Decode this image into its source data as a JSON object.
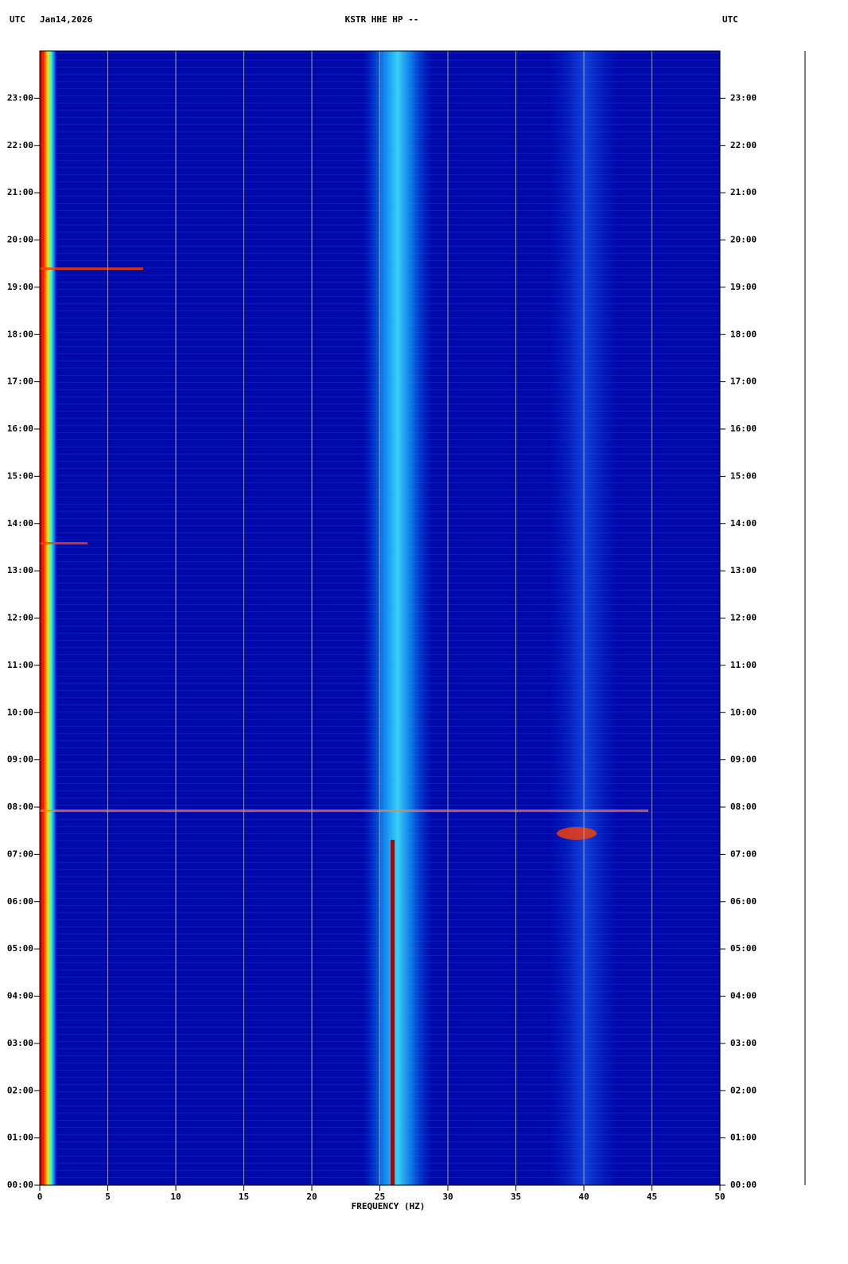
{
  "chart_data": {
    "type": "spectrogram",
    "title": "KSTR HHE HP --",
    "left_header": "UTC",
    "date": "Jan14,2026",
    "right_header": "UTC",
    "x_label": "FREQUENCY (HZ)",
    "xlim": [
      0,
      50
    ],
    "xticks": [
      0,
      5,
      10,
      15,
      20,
      25,
      30,
      35,
      40,
      45,
      50
    ],
    "ylim": [
      0,
      24
    ],
    "yticks": [
      {
        "value": 0,
        "label": "00:00"
      },
      {
        "value": 1,
        "label": "01:00"
      },
      {
        "value": 2,
        "label": "02:00"
      },
      {
        "value": 3,
        "label": "03:00"
      },
      {
        "value": 4,
        "label": "04:00"
      },
      {
        "value": 5,
        "label": "05:00"
      },
      {
        "value": 6,
        "label": "06:00"
      },
      {
        "value": 7,
        "label": "07:00"
      },
      {
        "value": 8,
        "label": "08:00"
      },
      {
        "value": 9,
        "label": "09:00"
      },
      {
        "value": 10,
        "label": "10:00"
      },
      {
        "value": 11,
        "label": "11:00"
      },
      {
        "value": 12,
        "label": "12:00"
      },
      {
        "value": 13,
        "label": "13:00"
      },
      {
        "value": 14,
        "label": "14:00"
      },
      {
        "value": 15,
        "label": "15:00"
      },
      {
        "value": 16,
        "label": "16:00"
      },
      {
        "value": 17,
        "label": "17:00"
      },
      {
        "value": 18,
        "label": "18:00"
      },
      {
        "value": 19,
        "label": "19:00"
      },
      {
        "value": 20,
        "label": "20:00"
      },
      {
        "value": 21,
        "label": "21:00"
      },
      {
        "value": 22,
        "label": "22:00"
      },
      {
        "value": 23,
        "label": "23:00"
      }
    ],
    "grid": true
  }
}
